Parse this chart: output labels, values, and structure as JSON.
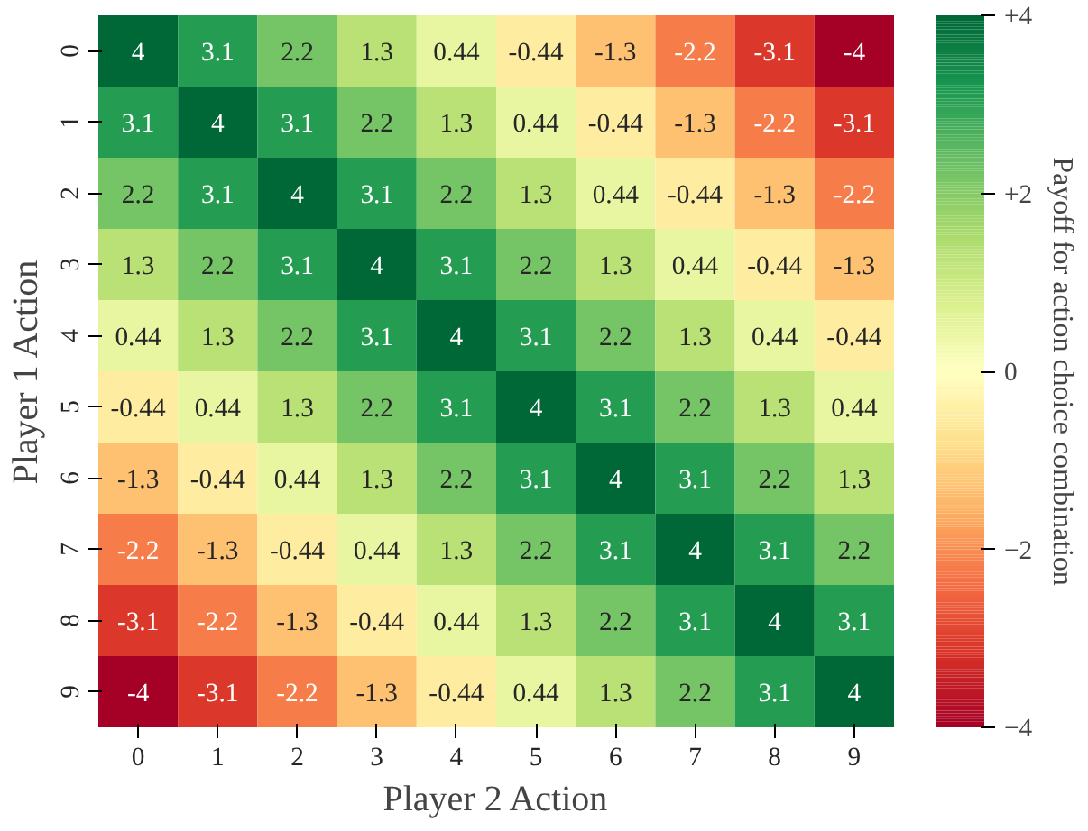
{
  "chart_data": {
    "type": "heatmap",
    "xlabel": "Player 2 Action",
    "ylabel": "Player 1 Action",
    "clabel": "Payoff for action choice combination",
    "categories": [
      "0",
      "1",
      "2",
      "3",
      "4",
      "5",
      "6",
      "7",
      "8",
      "9"
    ],
    "y_categories": [
      "0",
      "1",
      "2",
      "3",
      "4",
      "5",
      "6",
      "7",
      "8",
      "9"
    ],
    "cells": [
      [
        4,
        3.1,
        2.2,
        1.3,
        0.44,
        -0.44,
        -1.3,
        -2.2,
        -3.1,
        -4
      ],
      [
        3.1,
        4,
        3.1,
        2.2,
        1.3,
        0.44,
        -0.44,
        -1.3,
        -2.2,
        -3.1
      ],
      [
        2.2,
        3.1,
        4,
        3.1,
        2.2,
        1.3,
        0.44,
        -0.44,
        -1.3,
        -2.2
      ],
      [
        1.3,
        2.2,
        3.1,
        4,
        3.1,
        2.2,
        1.3,
        0.44,
        -0.44,
        -1.3
      ],
      [
        0.44,
        1.3,
        2.2,
        3.1,
        4,
        3.1,
        2.2,
        1.3,
        0.44,
        -0.44
      ],
      [
        -0.44,
        0.44,
        1.3,
        2.2,
        3.1,
        4,
        3.1,
        2.2,
        1.3,
        0.44
      ],
      [
        -1.3,
        -0.44,
        0.44,
        1.3,
        2.2,
        3.1,
        4,
        3.1,
        2.2,
        1.3
      ],
      [
        -2.2,
        -1.3,
        -0.44,
        0.44,
        1.3,
        2.2,
        3.1,
        4,
        3.1,
        2.2
      ],
      [
        -3.1,
        -2.2,
        -1.3,
        -0.44,
        0.44,
        1.3,
        2.2,
        3.1,
        4,
        3.1
      ],
      [
        -4,
        -3.1,
        -2.2,
        -1.3,
        -0.44,
        0.44,
        1.3,
        2.2,
        3.1,
        4
      ]
    ],
    "clim": [
      -4,
      4
    ],
    "cticks": [
      {
        "value": 4,
        "label": "+4"
      },
      {
        "value": 2,
        "label": "+2"
      },
      0,
      -2,
      -4
    ],
    "data_labels": true
  }
}
